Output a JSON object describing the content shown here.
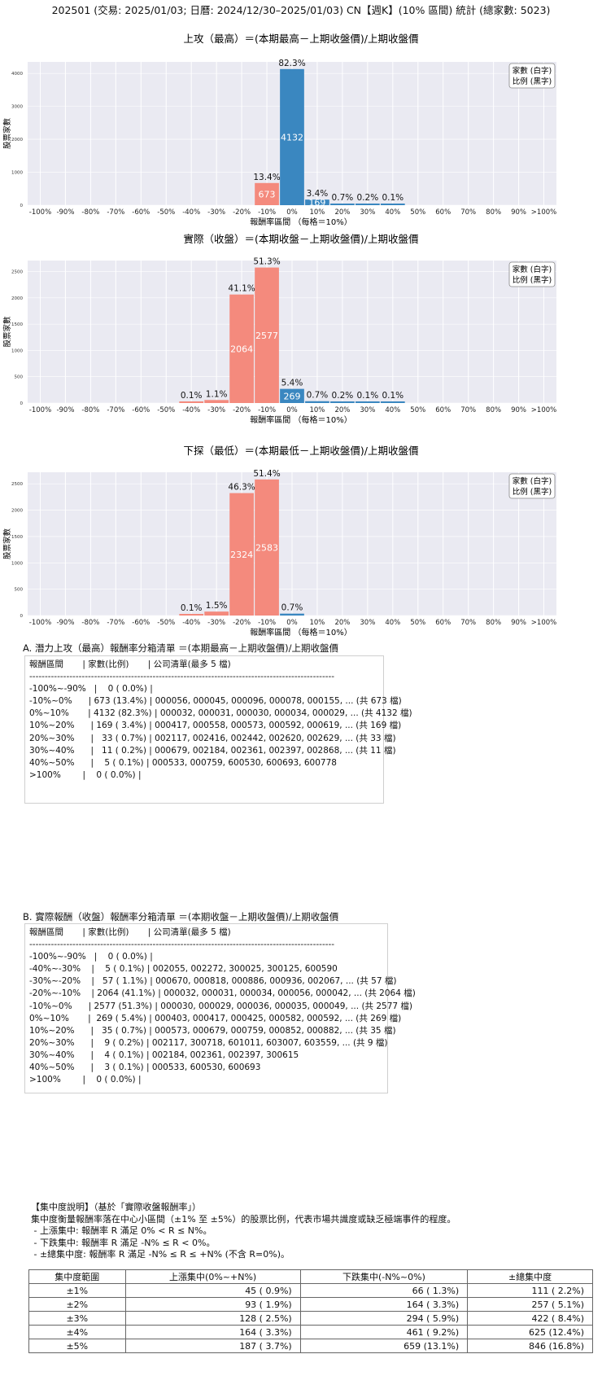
{
  "main_title": "202501 (交易: 2025/01/03; 日曆: 2024/12/30–2025/01/03) CN【週K】(10% 區間) 統計 (總家數: 5023)",
  "chart_data": [
    {
      "type": "bar",
      "title": "上攻（最高）＝(本期最高－上期收盤價)/上期收盤價",
      "xlabel": "報酬率區間 （每格＝10%）",
      "ylabel": "股票家數",
      "legend": [
        "家數 (白字)",
        "比例 (黑字)"
      ],
      "legend_position": "top-right",
      "categories": [
        "-100%",
        "-90%",
        "-80%",
        "-70%",
        "-60%",
        "-50%",
        "-40%",
        "-30%",
        "-20%",
        "-10%",
        "0%",
        "10%",
        "20%",
        "30%",
        "40%",
        "50%",
        "60%",
        "70%",
        "80%",
        "90%",
        ">100%"
      ],
      "values": [
        0,
        0,
        0,
        0,
        0,
        0,
        0,
        0,
        0,
        673,
        4132,
        169,
        33,
        11,
        5,
        0,
        0,
        0,
        0,
        0,
        0
      ],
      "percent_labels": [
        "",
        "",
        "",
        "",
        "",
        "",
        "",
        "",
        "",
        "13.4%",
        "82.3%",
        "3.4%",
        "0.7%",
        "0.2%",
        "0.1%",
        "",
        "",
        "",
        "",
        "",
        ""
      ],
      "count_labels": [
        "",
        "",
        "",
        "",
        "",
        "",
        "",
        "",
        "",
        "673",
        "4132",
        "169",
        "",
        "",
        "",
        "",
        "",
        "",
        "",
        "",
        ""
      ],
      "yticks": [
        0,
        1000,
        2000,
        3000,
        4000
      ],
      "ylim": [
        0,
        4350
      ],
      "colors": {
        "negative": "#f48a7d",
        "positive": "#3a87c0",
        "background": "#eaeaf2"
      }
    },
    {
      "type": "bar",
      "title": "實際（收盤）＝(本期收盤－上期收盤價)/上期收盤價",
      "xlabel": "報酬率區間 （每格＝10%）",
      "ylabel": "股票家數",
      "legend": [
        "家數 (白字)",
        "比例 (黑字)"
      ],
      "legend_position": "top-right",
      "categories": [
        "-100%",
        "-90%",
        "-80%",
        "-70%",
        "-60%",
        "-50%",
        "-40%",
        "-30%",
        "-20%",
        "-10%",
        "0%",
        "10%",
        "20%",
        "30%",
        "40%",
        "50%",
        "60%",
        "70%",
        "80%",
        "90%",
        ">100%"
      ],
      "values": [
        0,
        0,
        0,
        0,
        0,
        0,
        5,
        57,
        2064,
        2577,
        269,
        35,
        9,
        4,
        3,
        0,
        0,
        0,
        0,
        0,
        0
      ],
      "percent_labels": [
        "",
        "",
        "",
        "",
        "",
        "",
        "0.1%",
        "1.1%",
        "41.1%",
        "51.3%",
        "5.4%",
        "0.7%",
        "0.2%",
        "0.1%",
        "0.1%",
        "",
        "",
        "",
        "",
        "",
        ""
      ],
      "count_labels": [
        "",
        "",
        "",
        "",
        "",
        "",
        "",
        "",
        "2064",
        "2577",
        "269",
        "",
        "",
        "",
        "",
        "",
        "",
        "",
        "",
        "",
        ""
      ],
      "yticks": [
        0,
        500,
        1000,
        1500,
        2000,
        2500
      ],
      "ylim": [
        0,
        2710
      ],
      "colors": {
        "negative": "#f48a7d",
        "positive": "#3a87c0",
        "background": "#eaeaf2"
      }
    },
    {
      "type": "bar",
      "title": "下探（最低）＝(本期最低－上期收盤價)/上期收盤價",
      "xlabel": "報酬率區間 （每格＝10%）",
      "ylabel": "股票家數",
      "legend": [
        "家數 (白字)",
        "比例 (黑字)"
      ],
      "legend_position": "top-right",
      "categories": [
        "-100%",
        "-90%",
        "-80%",
        "-70%",
        "-60%",
        "-50%",
        "-40%",
        "-30%",
        "-20%",
        "-10%",
        "0%",
        "10%",
        "20%",
        "30%",
        "40%",
        "50%",
        "60%",
        "70%",
        "80%",
        "90%",
        ">100%"
      ],
      "values": [
        0,
        0,
        0,
        0,
        0,
        0,
        5,
        75,
        2324,
        2583,
        36,
        0,
        0,
        0,
        0,
        0,
        0,
        0,
        0,
        0,
        0
      ],
      "percent_labels": [
        "",
        "",
        "",
        "",
        "",
        "",
        "0.1%",
        "1.5%",
        "46.3%",
        "51.4%",
        "0.7%",
        "",
        "",
        "",
        "",
        "",
        "",
        "",
        "",
        "",
        ""
      ],
      "count_labels": [
        "",
        "",
        "",
        "",
        "",
        "",
        "",
        "",
        "2324",
        "2583",
        "",
        "",
        "",
        "",
        "",
        "",
        "",
        "",
        "",
        "",
        ""
      ],
      "yticks": [
        0,
        500,
        1000,
        1500,
        2000,
        2500
      ],
      "ylim": [
        0,
        2720
      ],
      "colors": {
        "negative": "#f48a7d",
        "positive": "#3a87c0",
        "background": "#eaeaf2"
      }
    }
  ],
  "list_a": {
    "header": "A. 潛力上攻（最高）報酬率分箱清單 ＝(本期最高－上期收盤價)/上期收盤價",
    "lines": [
      "報酬區間       | 家數(比例)       | 公司清單(最多 5 檔)",
      "---------------------------------------------------------------------------------------------------",
      "-100%~-90%   |    0 ( 0.0%) |",
      "-10%~0%      | 673 (13.4%) | 000056, 000045, 000096, 000078, 000155, ... (共 673 檔)",
      "0%~10%       | 4132 (82.3%) | 000032, 000031, 000030, 000034, 000029, ... (共 4132 檔)",
      "10%~20%      | 169 ( 3.4%) | 000417, 000558, 000573, 000592, 000619, ... (共 169 檔)",
      "20%~30%      |   33 ( 0.7%) | 002117, 002416, 002442, 002620, 002629, ... (共 33 檔)",
      "30%~40%      |   11 ( 0.2%) | 000679, 002184, 002361, 002397, 002868, ... (共 11 檔)",
      "40%~50%      |    5 ( 0.1%) | 000533, 000759, 600530, 600693, 600778",
      ">100%        |    0 ( 0.0%) |"
    ]
  },
  "list_b": {
    "header": "B. 實際報酬（收盤）報酬率分箱清單 ＝(本期收盤－上期收盤價)/上期收盤價",
    "lines": [
      "報酬區間       | 家數(比例)       | 公司清單(最多 5 檔)",
      "---------------------------------------------------------------------------------------------------",
      "-100%~-90%   |    0 ( 0.0%) |",
      "-40%~-30%    |    5 ( 0.1%) | 002055, 002272, 300025, 300125, 600590",
      "-30%~-20%    |   57 ( 1.1%) | 000670, 000818, 000886, 000936, 002067, ... (共 57 檔)",
      "-20%~-10%    | 2064 (41.1%) | 000032, 000031, 000034, 000056, 000042, ... (共 2064 檔)",
      "-10%~0%      | 2577 (51.3%) | 000030, 000029, 000036, 000035, 000049, ... (共 2577 檔)",
      "0%~10%       |  269 ( 5.4%) | 000403, 000417, 000425, 000582, 000592, ... (共 269 檔)",
      "10%~20%      |   35 ( 0.7%) | 000573, 000679, 000759, 000852, 000882, ... (共 35 檔)",
      "20%~30%      |    9 ( 0.2%) | 002117, 300718, 601011, 603007, 603559, ... (共 9 檔)",
      "30%~40%      |    4 ( 0.1%) | 002184, 002361, 002397, 300615",
      "40%~50%      |    3 ( 0.1%) | 000533, 600530, 600693",
      ">100%        |    0 ( 0.0%) |"
    ]
  },
  "concentration": {
    "note_lines": [
      "【集中度說明】（基於「實際收盤報酬率」）",
      "集中度衡量報酬率落在中心小區間（±1% 至 ±5%）的股票比例，代表市場共識度或缺乏極端事件的程度。",
      " - 上漲集中: 報酬率 R 滿足 0% < R ≤ N%。",
      " - 下跌集中: 報酬率 R 滿足 -N% ≤ R < 0%。",
      " - ±總集中度: 報酬率 R 滿足 -N% ≤ R ≤ +N% (不含 R=0%)。"
    ],
    "headers": [
      "集中度範圍",
      "上漲集中(0%~+N%)",
      "下跌集中(-N%~0%)",
      "±總集中度"
    ],
    "rows": [
      [
        "±1%",
        "45 ( 0.9%)",
        "66 ( 1.3%)",
        "111 ( 2.2%)"
      ],
      [
        "±2%",
        "93 ( 1.9%)",
        "164 ( 3.3%)",
        "257 ( 5.1%)"
      ],
      [
        "±3%",
        "128 ( 2.5%)",
        "294 ( 5.9%)",
        "422 ( 8.4%)"
      ],
      [
        "±4%",
        "164 ( 3.3%)",
        "461 ( 9.2%)",
        "625 (12.4%)"
      ],
      [
        "±5%",
        "187 ( 3.7%)",
        "659 (13.1%)",
        "846 (16.8%)"
      ]
    ]
  }
}
